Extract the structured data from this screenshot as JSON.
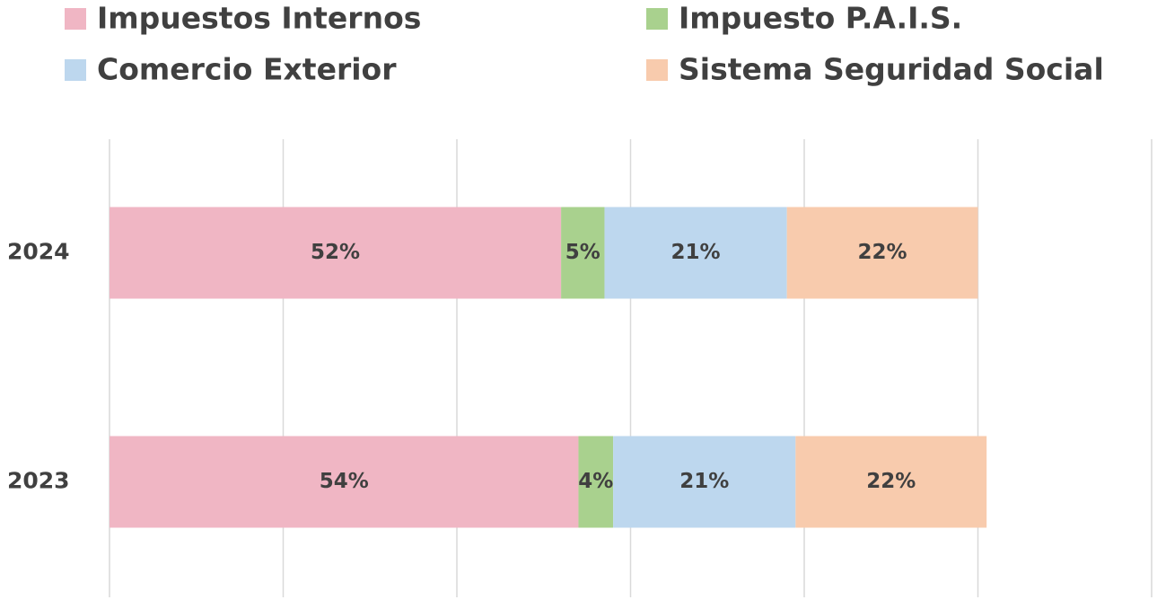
{
  "chart_data": {
    "type": "stacked-barh",
    "categories": [
      "2024",
      "2023"
    ],
    "series": [
      {
        "name": "Impuestos Internos",
        "color": "#f0b6c4",
        "values": [
          52,
          54
        ],
        "value_labels": [
          "52%",
          "54%"
        ]
      },
      {
        "name": "Impuesto P.A.I.S.",
        "color": "#a9d18e",
        "values": [
          5,
          4
        ],
        "value_labels": [
          "5%",
          "4%"
        ]
      },
      {
        "name": "Comercio Exterior",
        "color": "#bdd7ee",
        "values": [
          21,
          21
        ],
        "value_labels": [
          "21%",
          "21%"
        ]
      },
      {
        "name": "Sistema Seguridad Social",
        "color": "#f8cbad",
        "values": [
          22,
          22
        ],
        "value_labels": [
          "22%",
          "22%"
        ]
      }
    ],
    "xlim": [
      0,
      120
    ],
    "xticks": [
      0,
      20,
      40,
      60,
      80,
      100,
      120
    ],
    "grid": true,
    "legend": "top"
  }
}
